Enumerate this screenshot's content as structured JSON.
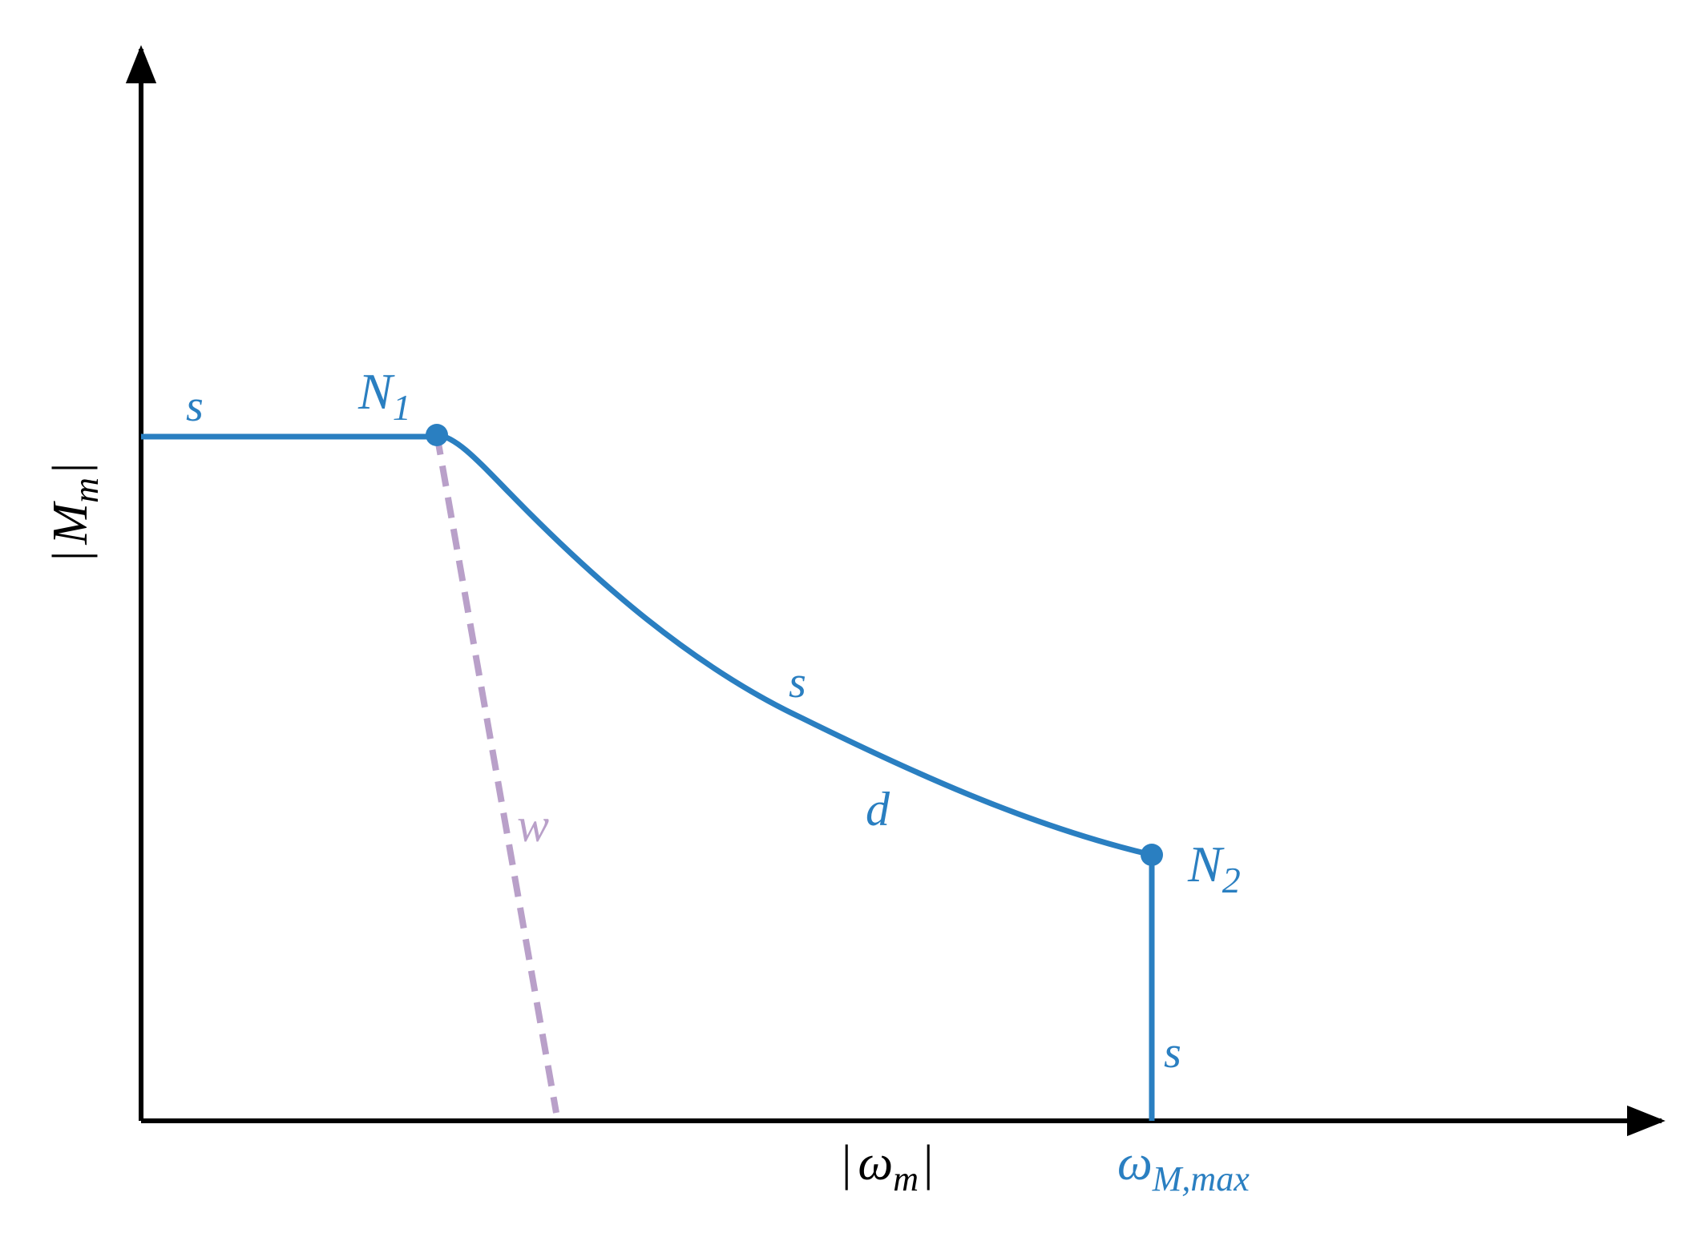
{
  "axes": {
    "y_label": {
      "pre": "|",
      "base": "M",
      "sub": "m",
      "post": "|"
    },
    "x_label": {
      "pre": "|",
      "base": "ω",
      "sub": "m",
      "post": "|"
    },
    "x_mark": {
      "base": "ω",
      "sub": "M,max"
    }
  },
  "nodes": [
    {
      "base": "N",
      "sub": "1"
    },
    {
      "base": "N",
      "sub": "2"
    }
  ],
  "segment_labels": [
    "s",
    "s",
    "d",
    "s",
    "w"
  ]
}
